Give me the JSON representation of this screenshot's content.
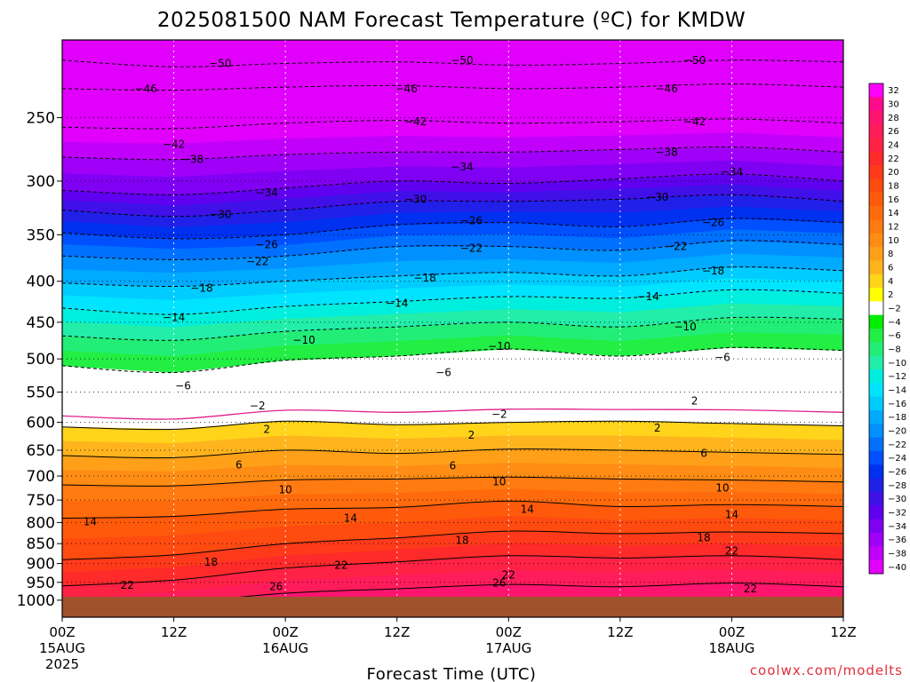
{
  "chart_data": {
    "type": "heatmap",
    "title": "2025081500 NAM Forecast Temperature (ºC) for KMDW",
    "xlabel": "Forecast Time (UTC)",
    "ylabel": "",
    "credit": "coolwx.com/modelts",
    "x_ticks": [
      {
        "hour": 0,
        "label": "00Z",
        "date": "15AUG",
        "year": "2025"
      },
      {
        "hour": 12,
        "label": "12Z",
        "date": "",
        "year": ""
      },
      {
        "hour": 24,
        "label": "00Z",
        "date": "16AUG",
        "year": ""
      },
      {
        "hour": 36,
        "label": "12Z",
        "date": "",
        "year": ""
      },
      {
        "hour": 48,
        "label": "00Z",
        "date": "17AUG",
        "year": ""
      },
      {
        "hour": 60,
        "label": "12Z",
        "date": "",
        "year": ""
      },
      {
        "hour": 72,
        "label": "00Z",
        "date": "18AUG",
        "year": ""
      },
      {
        "hour": 84,
        "label": "12Z",
        "date": "",
        "year": ""
      }
    ],
    "xlim_hours": [
      0,
      84
    ],
    "y_ticks": [
      250,
      300,
      350,
      400,
      450,
      500,
      550,
      600,
      650,
      700,
      750,
      800,
      850,
      900,
      950,
      1000
    ],
    "y_scale": "log",
    "ylim_hpa": [
      200,
      1050
    ],
    "surface_pressure_hpa": 990,
    "grid": true,
    "colorbar": {
      "labels": [
        "32",
        "30",
        "28",
        "26",
        "24",
        "22",
        "20",
        "18",
        "16",
        "14",
        "12",
        "10",
        "8",
        "6",
        "4",
        "2",
        "-2",
        "-4",
        "-6",
        "-8",
        "-10",
        "-12",
        "-14",
        "-16",
        "-18",
        "-20",
        "-22",
        "-24",
        "-26",
        "-28",
        "-30",
        "-32",
        "-34",
        "-36",
        "-38",
        "-40"
      ],
      "colors": [
        "#ff00ff",
        "#ff0a8c",
        "#ff1470",
        "#ff1c5a",
        "#ff2244",
        "#ff2a2a",
        "#ff3a1a",
        "#ff4a10",
        "#ff5a0c",
        "#ff6a0c",
        "#ff7a10",
        "#ff8c14",
        "#ffa018",
        "#ffb41e",
        "#ffd41a",
        "#ffff00",
        "#ffffff",
        "#00ee00",
        "#22ee44",
        "#22ee77",
        "#22eeaa",
        "#00eedd",
        "#00e4ff",
        "#00ccff",
        "#00aaff",
        "#0090ff",
        "#0070ff",
        "#0050ff",
        "#0030f0",
        "#2020e8",
        "#4010e8",
        "#6000f0",
        "#8000f4",
        "#a000f8",
        "#c000fa",
        "#e000fc"
      ]
    },
    "isotherms": [
      {
        "value": -50,
        "p": [
          212,
          216,
          214,
          213,
          215,
          214,
          212,
          213
        ]
      },
      {
        "value": -46,
        "p": [
          230,
          231,
          229,
          228,
          230,
          229,
          227,
          229
        ]
      },
      {
        "value": -42,
        "p": [
          257,
          258,
          254,
          252,
          254,
          253,
          251,
          254
        ]
      },
      {
        "value": -38,
        "p": [
          280,
          282,
          278,
          276,
          276,
          274,
          272,
          276
        ]
      },
      {
        "value": -34,
        "p": [
          308,
          312,
          306,
          300,
          302,
          298,
          294,
          300
        ]
      },
      {
        "value": -30,
        "p": [
          326,
          332,
          326,
          318,
          318,
          316,
          312,
          318
        ]
      },
      {
        "value": -26,
        "p": [
          348,
          354,
          350,
          340,
          338,
          342,
          334,
          338
        ]
      },
      {
        "value": -22,
        "p": [
          372,
          376,
          372,
          362,
          362,
          366,
          356,
          360
        ]
      },
      {
        "value": -18,
        "p": [
          402,
          406,
          400,
          394,
          390,
          394,
          384,
          388
        ]
      },
      {
        "value": -14,
        "p": [
          432,
          440,
          430,
          424,
          418,
          420,
          410,
          414
        ]
      },
      {
        "value": -10,
        "p": [
          468,
          474,
          462,
          456,
          450,
          456,
          444,
          446
        ]
      },
      {
        "value": -6,
        "p": [
          510,
          520,
          502,
          496,
          486,
          496,
          484,
          488
        ]
      },
      {
        "value": 2,
        "p": [
          608,
          612,
          598,
          604,
          600,
          598,
          602,
          606
        ]
      },
      {
        "value": 6,
        "p": [
          660,
          664,
          650,
          656,
          648,
          650,
          654,
          658
        ]
      },
      {
        "value": 10,
        "p": [
          718,
          720,
          708,
          706,
          702,
          706,
          708,
          712
        ]
      },
      {
        "value": 14,
        "p": [
          790,
          786,
          770,
          766,
          752,
          764,
          760,
          764
        ]
      },
      {
        "value": 18,
        "p": [
          890,
          878,
          850,
          836,
          820,
          826,
          822,
          826
        ]
      },
      {
        "value": 22,
        "p": [
          960,
          944,
          912,
          896,
          880,
          886,
          880,
          890
        ]
      },
      {
        "value": 26,
        "p": [
          1040,
          1010,
          980,
          968,
          956,
          962,
          952,
          962
        ]
      }
    ],
    "contour_labels": [
      {
        "value": -50,
        "hour": 17,
        "p": 214
      },
      {
        "value": -50,
        "hour": 43,
        "p": 212
      },
      {
        "value": -50,
        "hour": 68,
        "p": 212
      },
      {
        "value": -46,
        "hour": 9,
        "p": 230
      },
      {
        "value": -46,
        "hour": 37,
        "p": 230
      },
      {
        "value": -46,
        "hour": 65,
        "p": 230
      },
      {
        "value": -42,
        "hour": 12,
        "p": 270
      },
      {
        "value": -42,
        "hour": 38,
        "p": 253
      },
      {
        "value": -42,
        "hour": 68,
        "p": 253
      },
      {
        "value": -38,
        "hour": 14,
        "p": 282
      },
      {
        "value": -38,
        "hour": 65,
        "p": 276
      },
      {
        "value": -34,
        "hour": 22,
        "p": 310
      },
      {
        "value": -34,
        "hour": 43,
        "p": 288
      },
      {
        "value": -34,
        "hour": 72,
        "p": 292
      },
      {
        "value": -30,
        "hour": 17,
        "p": 330
      },
      {
        "value": -30,
        "hour": 38,
        "p": 316
      },
      {
        "value": -30,
        "hour": 64,
        "p": 314
      },
      {
        "value": -26,
        "hour": 22,
        "p": 360
      },
      {
        "value": -26,
        "hour": 44,
        "p": 336
      },
      {
        "value": -26,
        "hour": 70,
        "p": 338
      },
      {
        "value": -22,
        "hour": 21,
        "p": 378
      },
      {
        "value": -22,
        "hour": 44,
        "p": 364
      },
      {
        "value": -22,
        "hour": 66,
        "p": 362
      },
      {
        "value": -18,
        "hour": 15,
        "p": 408
      },
      {
        "value": -18,
        "hour": 39,
        "p": 396
      },
      {
        "value": -18,
        "hour": 70,
        "p": 388
      },
      {
        "value": -14,
        "hour": 12,
        "p": 444
      },
      {
        "value": -14,
        "hour": 36,
        "p": 426
      },
      {
        "value": -14,
        "hour": 63,
        "p": 418
      },
      {
        "value": -10,
        "hour": 26,
        "p": 474
      },
      {
        "value": -10,
        "hour": 47,
        "p": 482
      },
      {
        "value": -10,
        "hour": 67,
        "p": 456
      },
      {
        "value": -6,
        "hour": 13,
        "p": 540
      },
      {
        "value": -6,
        "hour": 41,
        "p": 520
      },
      {
        "value": -6,
        "hour": 71,
        "p": 498
      },
      {
        "value": -2,
        "hour": 21,
        "p": 572
      },
      {
        "value": -2,
        "hour": 47,
        "p": 586
      },
      {
        "value": 2,
        "hour": 22,
        "p": 612
      },
      {
        "value": 2,
        "hour": 44,
        "p": 622
      },
      {
        "value": 2,
        "hour": 64,
        "p": 610
      },
      {
        "value": 2,
        "hour": 68,
        "p": 564
      },
      {
        "value": 6,
        "hour": 19,
        "p": 678
      },
      {
        "value": 6,
        "hour": 42,
        "p": 680
      },
      {
        "value": 6,
        "hour": 69,
        "p": 656
      },
      {
        "value": 10,
        "hour": 24,
        "p": 728
      },
      {
        "value": 10,
        "hour": 47,
        "p": 712
      },
      {
        "value": 10,
        "hour": 71,
        "p": 724
      },
      {
        "value": 14,
        "hour": 3,
        "p": 798
      },
      {
        "value": 14,
        "hour": 31,
        "p": 790
      },
      {
        "value": 14,
        "hour": 50,
        "p": 770
      },
      {
        "value": 14,
        "hour": 72,
        "p": 782
      },
      {
        "value": 18,
        "hour": 16,
        "p": 896
      },
      {
        "value": 18,
        "hour": 43,
        "p": 842
      },
      {
        "value": 18,
        "hour": 69,
        "p": 836
      },
      {
        "value": 22,
        "hour": 7,
        "p": 958
      },
      {
        "value": 22,
        "hour": 30,
        "p": 905
      },
      {
        "value": 22,
        "hour": 48,
        "p": 930
      },
      {
        "value": 22,
        "hour": 72,
        "p": 868
      },
      {
        "value": 22,
        "hour": 74,
        "p": 968
      },
      {
        "value": 26,
        "hour": 23,
        "p": 962
      },
      {
        "value": 26,
        "hour": 47,
        "p": 952
      }
    ]
  }
}
